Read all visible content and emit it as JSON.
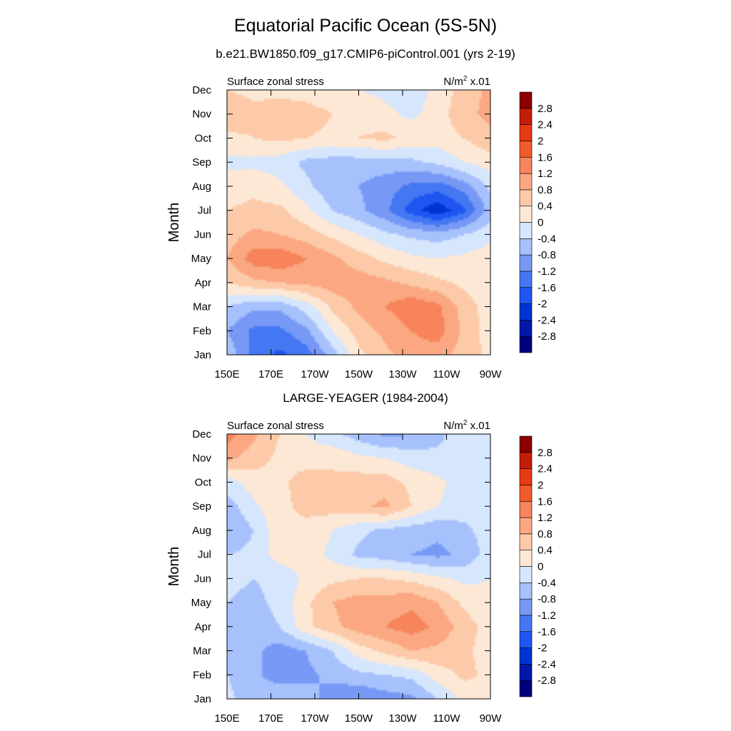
{
  "title": "Equatorial Pacific Ocean (5S-5N)",
  "colors": [
    "#00007f",
    "#0018a8",
    "#0033d4",
    "#1f55f0",
    "#4477f2",
    "#7799f5",
    "#a6c1fb",
    "#d6e6fc",
    "#fde8d6",
    "#fccaa8",
    "#faa782",
    "#f7845a",
    "#f25a2c",
    "#e83a10",
    "#c21e08",
    "#8c0000"
  ],
  "colorbar_labels": [
    "-2.8",
    "-2.4",
    "-2",
    "-1.6",
    "-1.2",
    "-0.8",
    "-0.4",
    "0",
    "0.4",
    "0.8",
    "1.2",
    "1.6",
    "2",
    "2.4",
    "2.8"
  ],
  "chart_data": [
    {
      "type": "heatmap",
      "title": "b.e21.BW1850.f09_g17.CMIP6-piControl.001 (yrs 2-19)",
      "left_label": "Surface zonal stress",
      "units_label": "N/m",
      "units_sup": "2",
      "units_scale": " x.01",
      "ylabel": "Month",
      "x_ticks": [
        "150E",
        "170E",
        "170W",
        "150W",
        "130W",
        "110W",
        "90W"
      ],
      "y_ticks": [
        "Jan",
        "Feb",
        "Mar",
        "Apr",
        "May",
        "Jun",
        "Jul",
        "Aug",
        "Sep",
        "Oct",
        "Nov",
        "Dec"
      ],
      "grid": [
        [
          -0.5,
          -1.3,
          -1.7,
          -1.4,
          -0.6,
          0.3,
          0.7,
          1.0,
          1.0,
          0.6,
          0.3
        ],
        [
          -0.8,
          -1.3,
          -1.3,
          -0.9,
          0.0,
          0.6,
          0.9,
          1.2,
          1.4,
          0.7,
          0.2
        ],
        [
          -0.4,
          -0.7,
          -0.7,
          -0.2,
          0.5,
          0.9,
          1.2,
          1.5,
          1.3,
          0.6,
          0.2
        ],
        [
          0.4,
          0.7,
          0.8,
          0.9,
          1.0,
          1.0,
          0.9,
          0.7,
          0.5,
          0.3,
          0.1
        ],
        [
          0.8,
          1.4,
          1.5,
          1.2,
          0.9,
          0.6,
          0.3,
          0.1,
          0.0,
          0.1,
          0.2
        ],
        [
          0.6,
          0.9,
          0.8,
          0.6,
          0.3,
          0.0,
          -0.3,
          -0.5,
          -0.6,
          -0.4,
          -0.1
        ],
        [
          0.4,
          0.5,
          0.5,
          0.1,
          -0.4,
          -0.7,
          -1.1,
          -1.8,
          -2.3,
          -1.7,
          -0.6
        ],
        [
          0.2,
          0.3,
          0.1,
          -0.3,
          -0.7,
          -0.8,
          -1.0,
          -1.3,
          -1.4,
          -1.0,
          -0.3
        ],
        [
          -0.1,
          -0.1,
          -0.2,
          -0.5,
          -0.6,
          -0.6,
          -0.6,
          -0.5,
          -0.3,
          0.0,
          0.2
        ],
        [
          0.3,
          0.4,
          0.5,
          0.4,
          0.3,
          0.4,
          0.5,
          0.3,
          0.2,
          0.4,
          0.7
        ],
        [
          0.7,
          0.5,
          0.6,
          0.6,
          0.4,
          0.3,
          0.1,
          -0.1,
          0.2,
          0.7,
          0.9
        ],
        [
          0.4,
          0.3,
          0.3,
          0.2,
          0.1,
          0.0,
          -0.1,
          -0.2,
          0.1,
          0.6,
          0.9
        ]
      ]
    },
    {
      "type": "heatmap",
      "title": "LARGE-YEAGER (1984-2004)",
      "left_label": "Surface zonal stress",
      "units_label": "N/m",
      "units_sup": "2",
      "units_scale": " x.01",
      "ylabel": "Month",
      "x_ticks": [
        "150E",
        "170E",
        "170W",
        "150W",
        "130W",
        "110W",
        "90W"
      ],
      "y_ticks": [
        "Jan",
        "Feb",
        "Mar",
        "Apr",
        "May",
        "Jun",
        "Jul",
        "Aug",
        "Sep",
        "Oct",
        "Nov",
        "Dec"
      ],
      "grid": [
        [
          -0.3,
          -0.6,
          -0.5,
          -0.6,
          -1.0,
          -1.2,
          -1.0,
          -0.9,
          -0.4,
          0.1,
          0.3
        ],
        [
          -0.4,
          -0.7,
          -1.0,
          -0.9,
          -0.7,
          -0.5,
          -0.4,
          -0.3,
          0.2,
          0.5,
          0.3
        ],
        [
          -0.5,
          -0.7,
          -1.0,
          -0.8,
          -0.4,
          0.2,
          0.5,
          0.8,
          0.7,
          0.5,
          0.2
        ],
        [
          -0.5,
          -0.6,
          -0.4,
          0.3,
          0.7,
          1.0,
          1.2,
          1.4,
          1.1,
          0.6,
          0.2
        ],
        [
          -0.4,
          -0.5,
          -0.3,
          0.3,
          0.8,
          1.0,
          1.0,
          1.1,
          0.8,
          0.3,
          0.1
        ],
        [
          -0.3,
          -0.4,
          -0.3,
          0.1,
          0.3,
          0.4,
          0.4,
          0.3,
          0.1,
          -0.1,
          0.0
        ],
        [
          -0.4,
          -0.3,
          0.2,
          0.2,
          -0.1,
          -0.5,
          -0.6,
          -0.8,
          -0.9,
          -0.7,
          -0.2
        ],
        [
          -0.8,
          -0.4,
          0.3,
          0.3,
          0.0,
          -0.3,
          -0.5,
          -0.6,
          -0.7,
          -0.5,
          -0.2
        ],
        [
          -0.6,
          -0.1,
          0.3,
          0.5,
          0.6,
          0.7,
          0.9,
          0.4,
          0.0,
          -0.2,
          -0.1
        ],
        [
          -0.2,
          0.2,
          0.3,
          0.6,
          0.5,
          0.6,
          0.6,
          0.3,
          0.1,
          -0.2,
          -0.2
        ],
        [
          0.9,
          0.6,
          0.3,
          0.2,
          0.3,
          0.1,
          0.0,
          -0.2,
          -0.3,
          -0.2,
          0.0
        ],
        [
          1.4,
          0.9,
          0.4,
          0.0,
          -0.3,
          -0.6,
          -0.9,
          -0.8,
          -0.5,
          -0.2,
          0.0
        ]
      ]
    }
  ]
}
